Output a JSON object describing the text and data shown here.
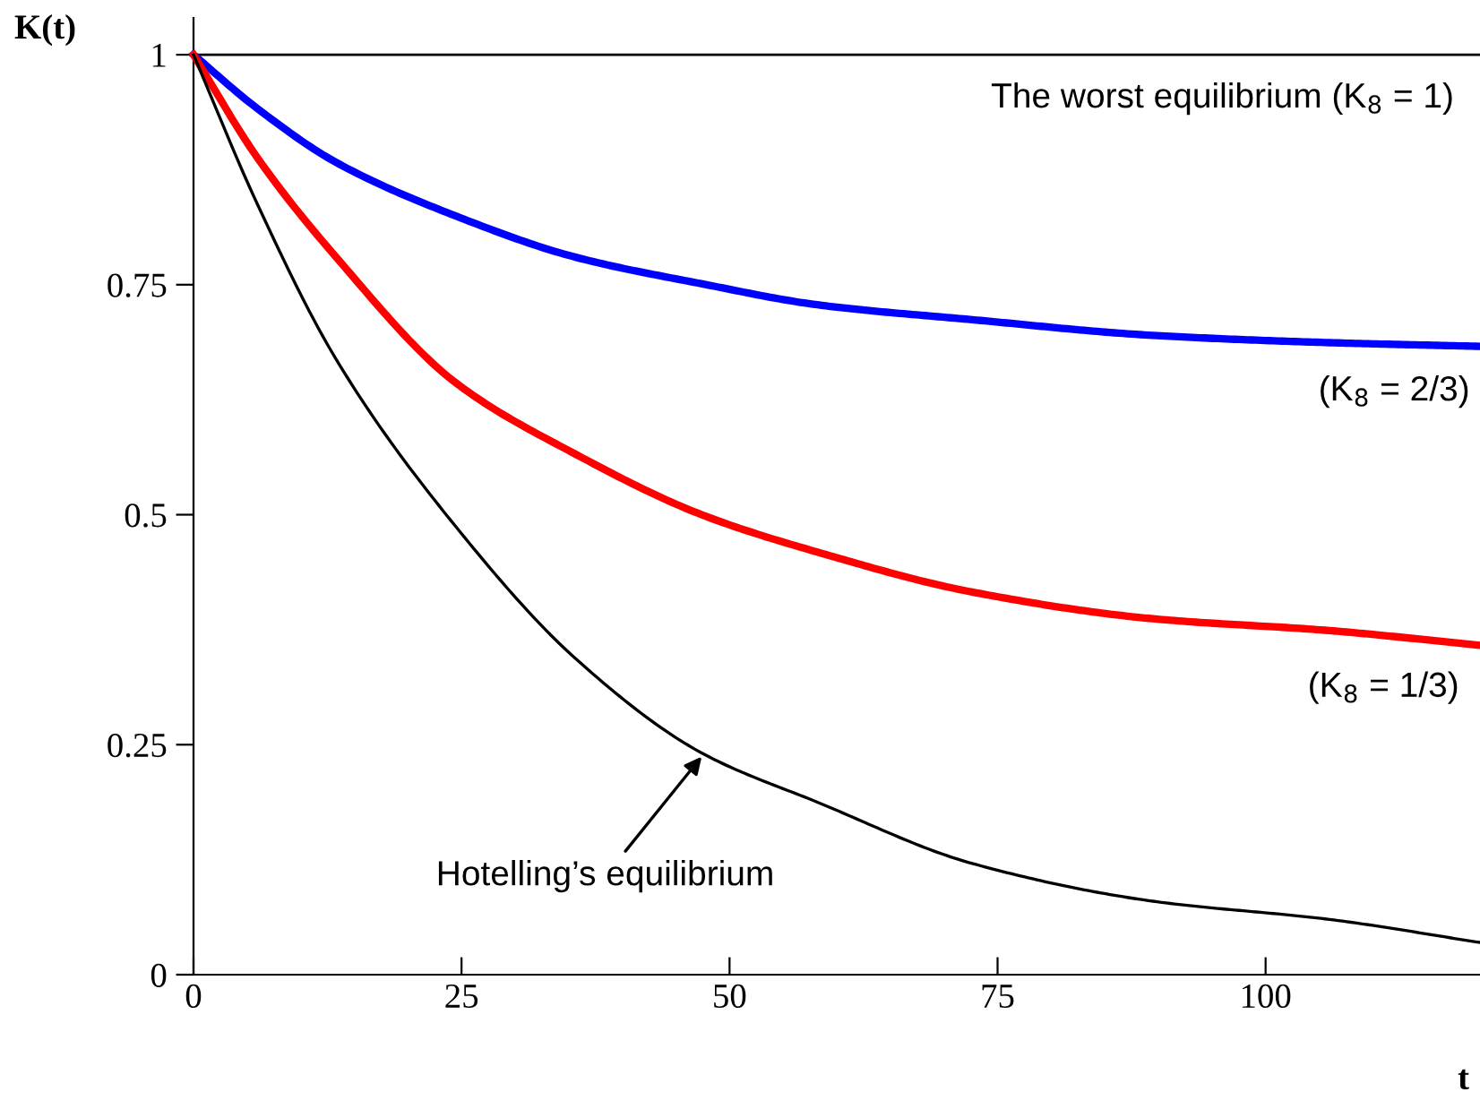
{
  "chart_data": {
    "type": "line",
    "xlabel": "t",
    "ylabel": "K(t)",
    "xlim": [
      0,
      120
    ],
    "ylim": [
      0,
      1.04
    ],
    "xticks": [
      0,
      25,
      50,
      75,
      100
    ],
    "yticks": [
      0,
      0.25,
      0.5,
      0.75,
      1
    ],
    "grid": false,
    "legend": false,
    "marker": "none",
    "line_style": "solid",
    "x": [
      0,
      5.9,
      13.3,
      24.4,
      35.6,
      47.4,
      58.3,
      72.6,
      89.4,
      106,
      120
    ],
    "series": [
      {
        "color": "#0000ff",
        "values": [
          1,
          0.942,
          0.883,
          0.825,
          0.78,
          0.751,
          0.728,
          0.712,
          0.695,
          0.687,
          0.683
        ]
      },
      {
        "color": "#ff0000",
        "values": [
          1,
          0.889,
          0.78,
          0.644,
          0.566,
          0.5,
          0.459,
          0.416,
          0.387,
          0.374,
          0.358
        ]
      },
      {
        "color": "#000000",
        "values": [
          1,
          0.839,
          0.669,
          0.488,
          0.344,
          0.241,
          0.187,
          0.121,
          0.08,
          0.06,
          0.035
        ]
      }
    ],
    "ref_lines": [
      {
        "axis": "y",
        "value": 1,
        "label": "The worst equilibrium (K$_{8}$ = 1)",
        "color": "#000000"
      }
    ],
    "annotations": [
      {
        "text": "(K$_{8}$ = 2/3)",
        "x": 112,
        "y": 0.684
      },
      {
        "text": "(K$_{8}$ = 1/3)",
        "x": 111,
        "y": 0.362
      },
      {
        "text": "Hotelling’s equilibrium",
        "x": 47.4,
        "y": 0.237
      }
    ]
  }
}
